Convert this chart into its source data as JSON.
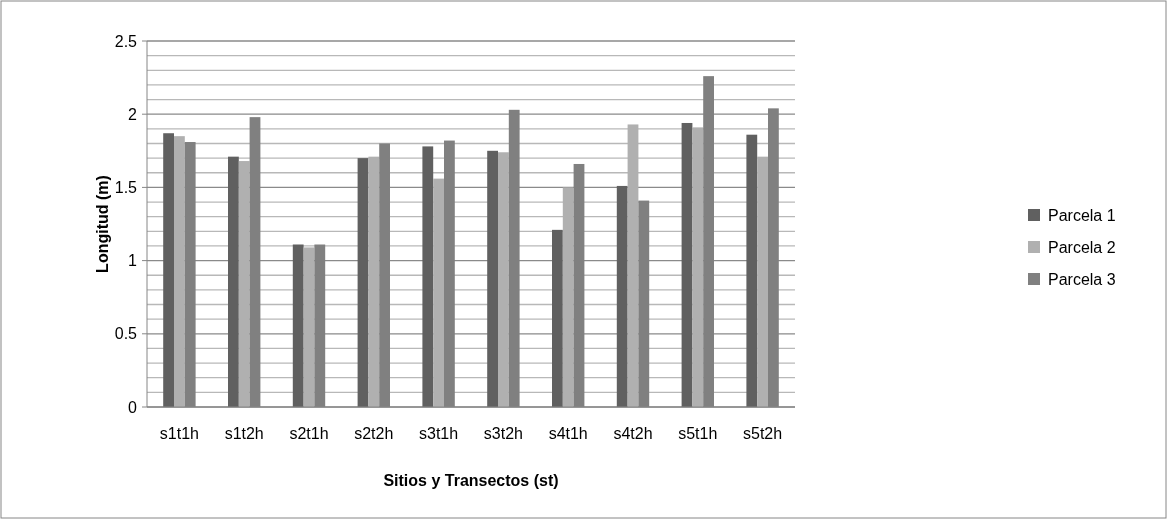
{
  "chart_data": {
    "type": "bar",
    "xlabel": "Sitios y Transectos (st)",
    "ylabel": "Longitud (m)",
    "categories": [
      "s1t1h",
      "s1t2h",
      "s2t1h",
      "s2t2h",
      "s3t1h",
      "s3t2h",
      "s4t1h",
      "s4t2h",
      "s5t1h",
      "s5t2h"
    ],
    "series": [
      {
        "name": "Parcela 1",
        "color": "#606060",
        "values": [
          1.87,
          1.71,
          1.11,
          1.7,
          1.78,
          1.75,
          1.21,
          1.51,
          1.94,
          1.86
        ]
      },
      {
        "name": "Parcela 2",
        "color": "#b0b0b0",
        "values": [
          1.85,
          1.68,
          1.09,
          1.71,
          1.56,
          1.74,
          1.5,
          1.93,
          1.91,
          1.71
        ]
      },
      {
        "name": "Parcela 3",
        "color": "#808080",
        "values": [
          1.81,
          1.98,
          1.11,
          1.8,
          1.82,
          2.03,
          1.66,
          1.41,
          2.26,
          2.04
        ]
      }
    ],
    "ylim": [
      0,
      2.5
    ],
    "yticks": [
      0,
      {
        "value": 0.1,
        "label": null
      },
      {
        "value": 0.2,
        "label": null
      },
      {
        "value": 0.3,
        "label": null
      },
      {
        "value": 0.4,
        "label": null
      },
      0.5,
      {
        "value": 0.6,
        "label": null
      },
      {
        "value": 0.7,
        "label": null
      },
      {
        "value": 0.8,
        "label": null
      },
      {
        "value": 0.9,
        "label": null
      },
      1,
      {
        "value": 1.1,
        "label": null
      },
      {
        "value": 1.2,
        "label": null
      },
      {
        "value": 1.3,
        "label": null
      },
      {
        "value": 1.4,
        "label": null
      },
      1.5,
      {
        "value": 1.6,
        "label": null
      },
      {
        "value": 1.7,
        "label": null
      },
      {
        "value": 1.8,
        "label": null
      },
      {
        "value": 1.9,
        "label": null
      },
      2,
      {
        "value": 2.1,
        "label": null
      },
      {
        "value": 2.2,
        "label": null
      },
      {
        "value": 2.3,
        "label": null
      },
      {
        "value": 2.4,
        "label": null
      },
      2.5
    ],
    "grid": "y",
    "legend": "right"
  }
}
